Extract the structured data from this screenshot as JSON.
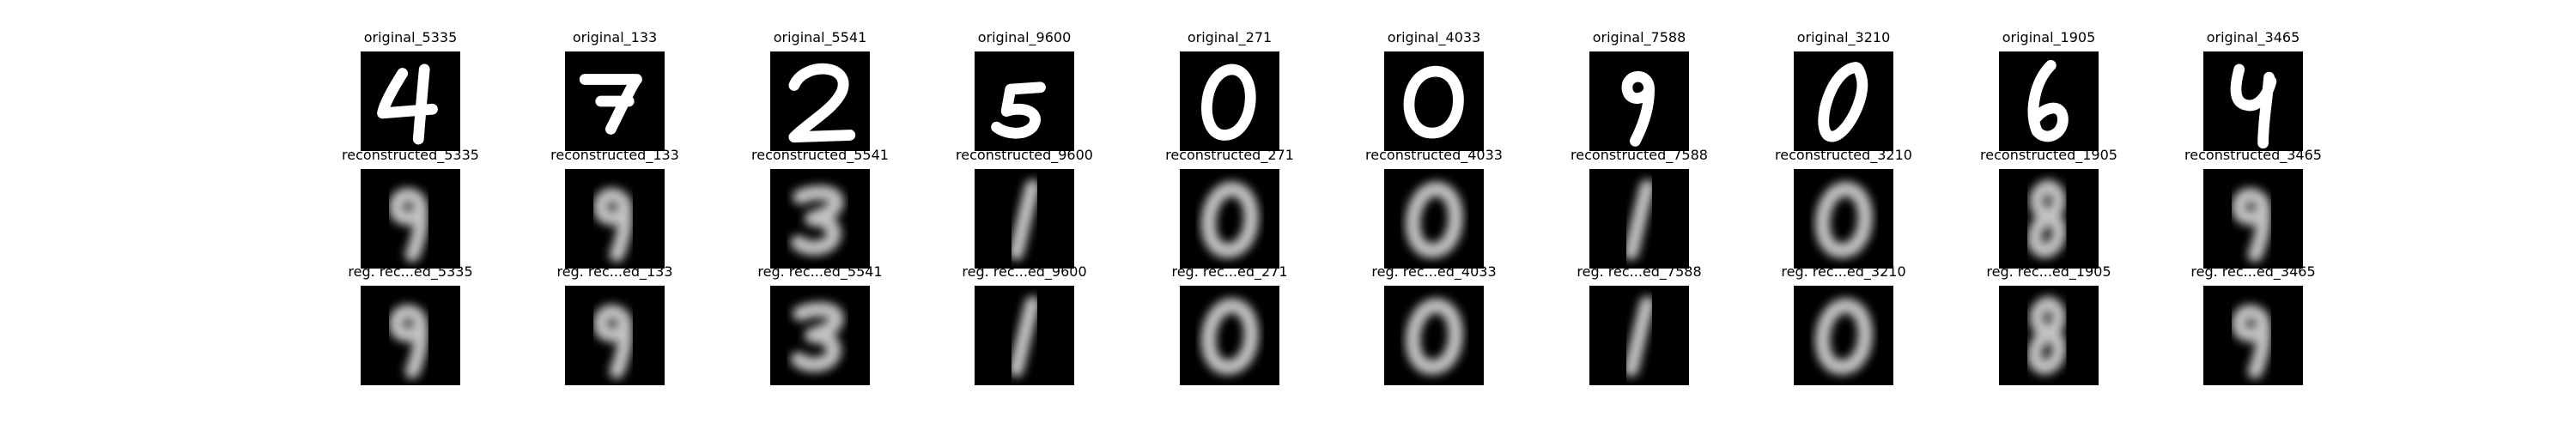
{
  "rows": [
    {
      "id": "original",
      "style": "original",
      "titles": [
        "original_5335",
        "original_133",
        "original_5541",
        "original_9600",
        "original_271",
        "original_4033",
        "original_7588",
        "original_3210",
        "original_1905",
        "original_3465"
      ],
      "digits": [
        "4",
        "7",
        "2",
        "5",
        "0",
        "0",
        "9",
        "0",
        "6",
        "4"
      ]
    },
    {
      "id": "reconstructed",
      "style": "blurred",
      "titles": [
        "reconstructed_5335",
        "reconstructed_133",
        "reconstructed_5541",
        "reconstructed_9600",
        "reconstructed_271",
        "reconstructed_4033",
        "reconstructed_7588",
        "reconstructed_3210",
        "reconstructed_1905",
        "reconstructed_3465"
      ],
      "digits": [
        "9",
        "9",
        "3",
        "1",
        "0",
        "0",
        "1",
        "0",
        "8",
        "9"
      ]
    },
    {
      "id": "reg-reconstructed",
      "style": "blurred",
      "titles": [
        "reg. rec...ed_5335",
        "reg. rec...ed_133",
        "reg. rec...ed_5541",
        "reg. rec...ed_9600",
        "reg. rec...ed_271",
        "reg. rec...ed_4033",
        "reg. rec...ed_7588",
        "reg. rec...ed_3210",
        "reg. rec...ed_1905",
        "reg. rec...ed_3465"
      ],
      "digits": [
        "9",
        "9",
        "3",
        "1",
        "0",
        "0",
        "1",
        "0",
        "8",
        "9"
      ]
    }
  ]
}
